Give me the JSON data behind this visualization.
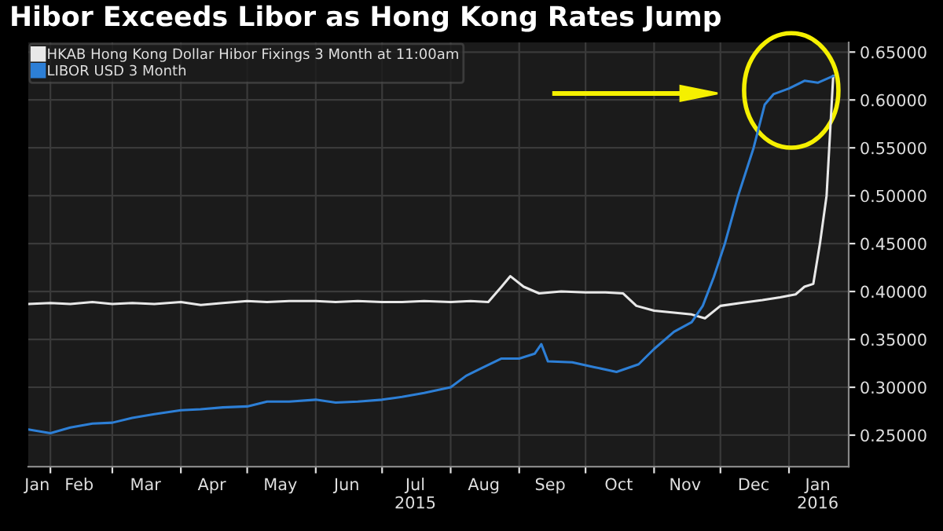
{
  "chart_data": {
    "type": "line",
    "title": "Hibor Exceeds Libor as Hong Kong Rates Jump",
    "series": [
      {
        "name": "HKAB Hong Kong Dollar Hibor Fixings 3 Month at 11:00am",
        "color": "#e8e8e8",
        "x": [
          "2015-01-22",
          "2015-02-01",
          "2015-02-10",
          "2015-02-20",
          "2015-03-01",
          "2015-03-10",
          "2015-03-20",
          "2015-04-01",
          "2015-04-10",
          "2015-04-20",
          "2015-05-01",
          "2015-05-10",
          "2015-05-20",
          "2015-06-01",
          "2015-06-10",
          "2015-06-20",
          "2015-07-01",
          "2015-07-10",
          "2015-07-20",
          "2015-08-01",
          "2015-08-10",
          "2015-08-18",
          "2015-08-24",
          "2015-08-28",
          "2015-09-03",
          "2015-09-10",
          "2015-09-20",
          "2015-10-01",
          "2015-10-10",
          "2015-10-18",
          "2015-10-24",
          "2015-11-01",
          "2015-11-10",
          "2015-11-18",
          "2015-11-24",
          "2015-12-01",
          "2015-12-10",
          "2015-12-20",
          "2015-12-28",
          "2016-01-04",
          "2016-01-08",
          "2016-01-12",
          "2016-01-15",
          "2016-01-18",
          "2016-01-21"
        ],
        "values": [
          0.387,
          0.388,
          0.387,
          0.389,
          0.387,
          0.388,
          0.387,
          0.389,
          0.386,
          0.388,
          0.39,
          0.389,
          0.39,
          0.39,
          0.389,
          0.39,
          0.389,
          0.389,
          0.39,
          0.389,
          0.39,
          0.389,
          0.405,
          0.416,
          0.405,
          0.398,
          0.4,
          0.399,
          0.399,
          0.398,
          0.385,
          0.38,
          0.378,
          0.376,
          0.372,
          0.385,
          0.388,
          0.391,
          0.394,
          0.397,
          0.405,
          0.408,
          0.45,
          0.5,
          0.625
        ]
      },
      {
        "name": "LIBOR USD 3 Month",
        "color": "#2d7fd6",
        "x": [
          "2015-01-22",
          "2015-02-01",
          "2015-02-10",
          "2015-02-20",
          "2015-03-01",
          "2015-03-10",
          "2015-03-20",
          "2015-04-01",
          "2015-04-10",
          "2015-04-20",
          "2015-05-01",
          "2015-05-10",
          "2015-05-20",
          "2015-06-01",
          "2015-06-10",
          "2015-06-20",
          "2015-07-01",
          "2015-07-10",
          "2015-07-20",
          "2015-08-01",
          "2015-08-08",
          "2015-08-15",
          "2015-08-24",
          "2015-09-01",
          "2015-09-08",
          "2015-09-11",
          "2015-09-14",
          "2015-09-25",
          "2015-10-05",
          "2015-10-15",
          "2015-10-25",
          "2015-11-01",
          "2015-11-10",
          "2015-11-18",
          "2015-11-23",
          "2015-11-28",
          "2015-12-03",
          "2015-12-09",
          "2015-12-16",
          "2015-12-21",
          "2015-12-25",
          "2016-01-01",
          "2016-01-08",
          "2016-01-14",
          "2016-01-21"
        ],
        "values": [
          0.256,
          0.252,
          0.258,
          0.262,
          0.263,
          0.268,
          0.272,
          0.276,
          0.277,
          0.279,
          0.28,
          0.285,
          0.285,
          0.287,
          0.284,
          0.285,
          0.287,
          0.29,
          0.294,
          0.3,
          0.312,
          0.32,
          0.33,
          0.33,
          0.335,
          0.345,
          0.327,
          0.326,
          0.321,
          0.316,
          0.324,
          0.34,
          0.358,
          0.368,
          0.385,
          0.415,
          0.45,
          0.5,
          0.55,
          0.595,
          0.606,
          0.612,
          0.62,
          0.618,
          0.625
        ]
      }
    ],
    "xlim": [
      "2015-01-22",
      "2016-01-28"
    ],
    "xticks": [
      {
        "value": "2015-02-01",
        "label": null
      },
      {
        "value": "2015-03-01",
        "label": null
      },
      {
        "value": "2015-04-01",
        "label": null
      },
      {
        "value": "2015-05-01",
        "label": null
      },
      {
        "value": "2015-06-01",
        "label": null
      },
      {
        "value": "2015-07-01",
        "label": null
      },
      {
        "value": "2015-08-01",
        "label": null
      },
      {
        "value": "2015-09-01",
        "label": null
      },
      {
        "value": "2015-10-01",
        "label": null
      },
      {
        "value": "2015-11-01",
        "label": null
      },
      {
        "value": "2015-12-01",
        "label": null
      },
      {
        "value": "2016-01-01",
        "label": null
      },
      {
        "value": "2015-01-26",
        "label": "Jan"
      },
      {
        "value": "2015-02-14",
        "label": "Feb"
      },
      {
        "value": "2015-03-16",
        "label": "Mar"
      },
      {
        "value": "2015-04-15",
        "label": "Apr"
      },
      {
        "value": "2015-05-16",
        "label": "May"
      },
      {
        "value": "2015-06-15",
        "label": "Jun"
      },
      {
        "value": "2015-07-16",
        "label": "Jul\n2015"
      },
      {
        "value": "2015-08-16",
        "label": "Aug"
      },
      {
        "value": "2015-09-15",
        "label": "Sep"
      },
      {
        "value": "2015-10-16",
        "label": "Oct"
      },
      {
        "value": "2015-11-15",
        "label": "Nov"
      },
      {
        "value": "2015-12-16",
        "label": "Dec"
      },
      {
        "value": "2016-01-14",
        "label": "Jan\n2016"
      }
    ],
    "ylim": [
      0.217,
      0.66
    ],
    "yticks": [
      {
        "value": 0.25,
        "label": "0.25000"
      },
      {
        "value": 0.3,
        "label": "0.30000"
      },
      {
        "value": 0.35,
        "label": "0.35000"
      },
      {
        "value": 0.4,
        "label": "0.40000"
      },
      {
        "value": 0.45,
        "label": "0.45000"
      },
      {
        "value": 0.5,
        "label": "0.50000"
      },
      {
        "value": 0.55,
        "label": "0.55000"
      },
      {
        "value": 0.6,
        "label": "0.60000"
      },
      {
        "value": 0.65,
        "label": "0.65000"
      }
    ],
    "grid": true,
    "legend": "top left",
    "line_style": "solid"
  }
}
